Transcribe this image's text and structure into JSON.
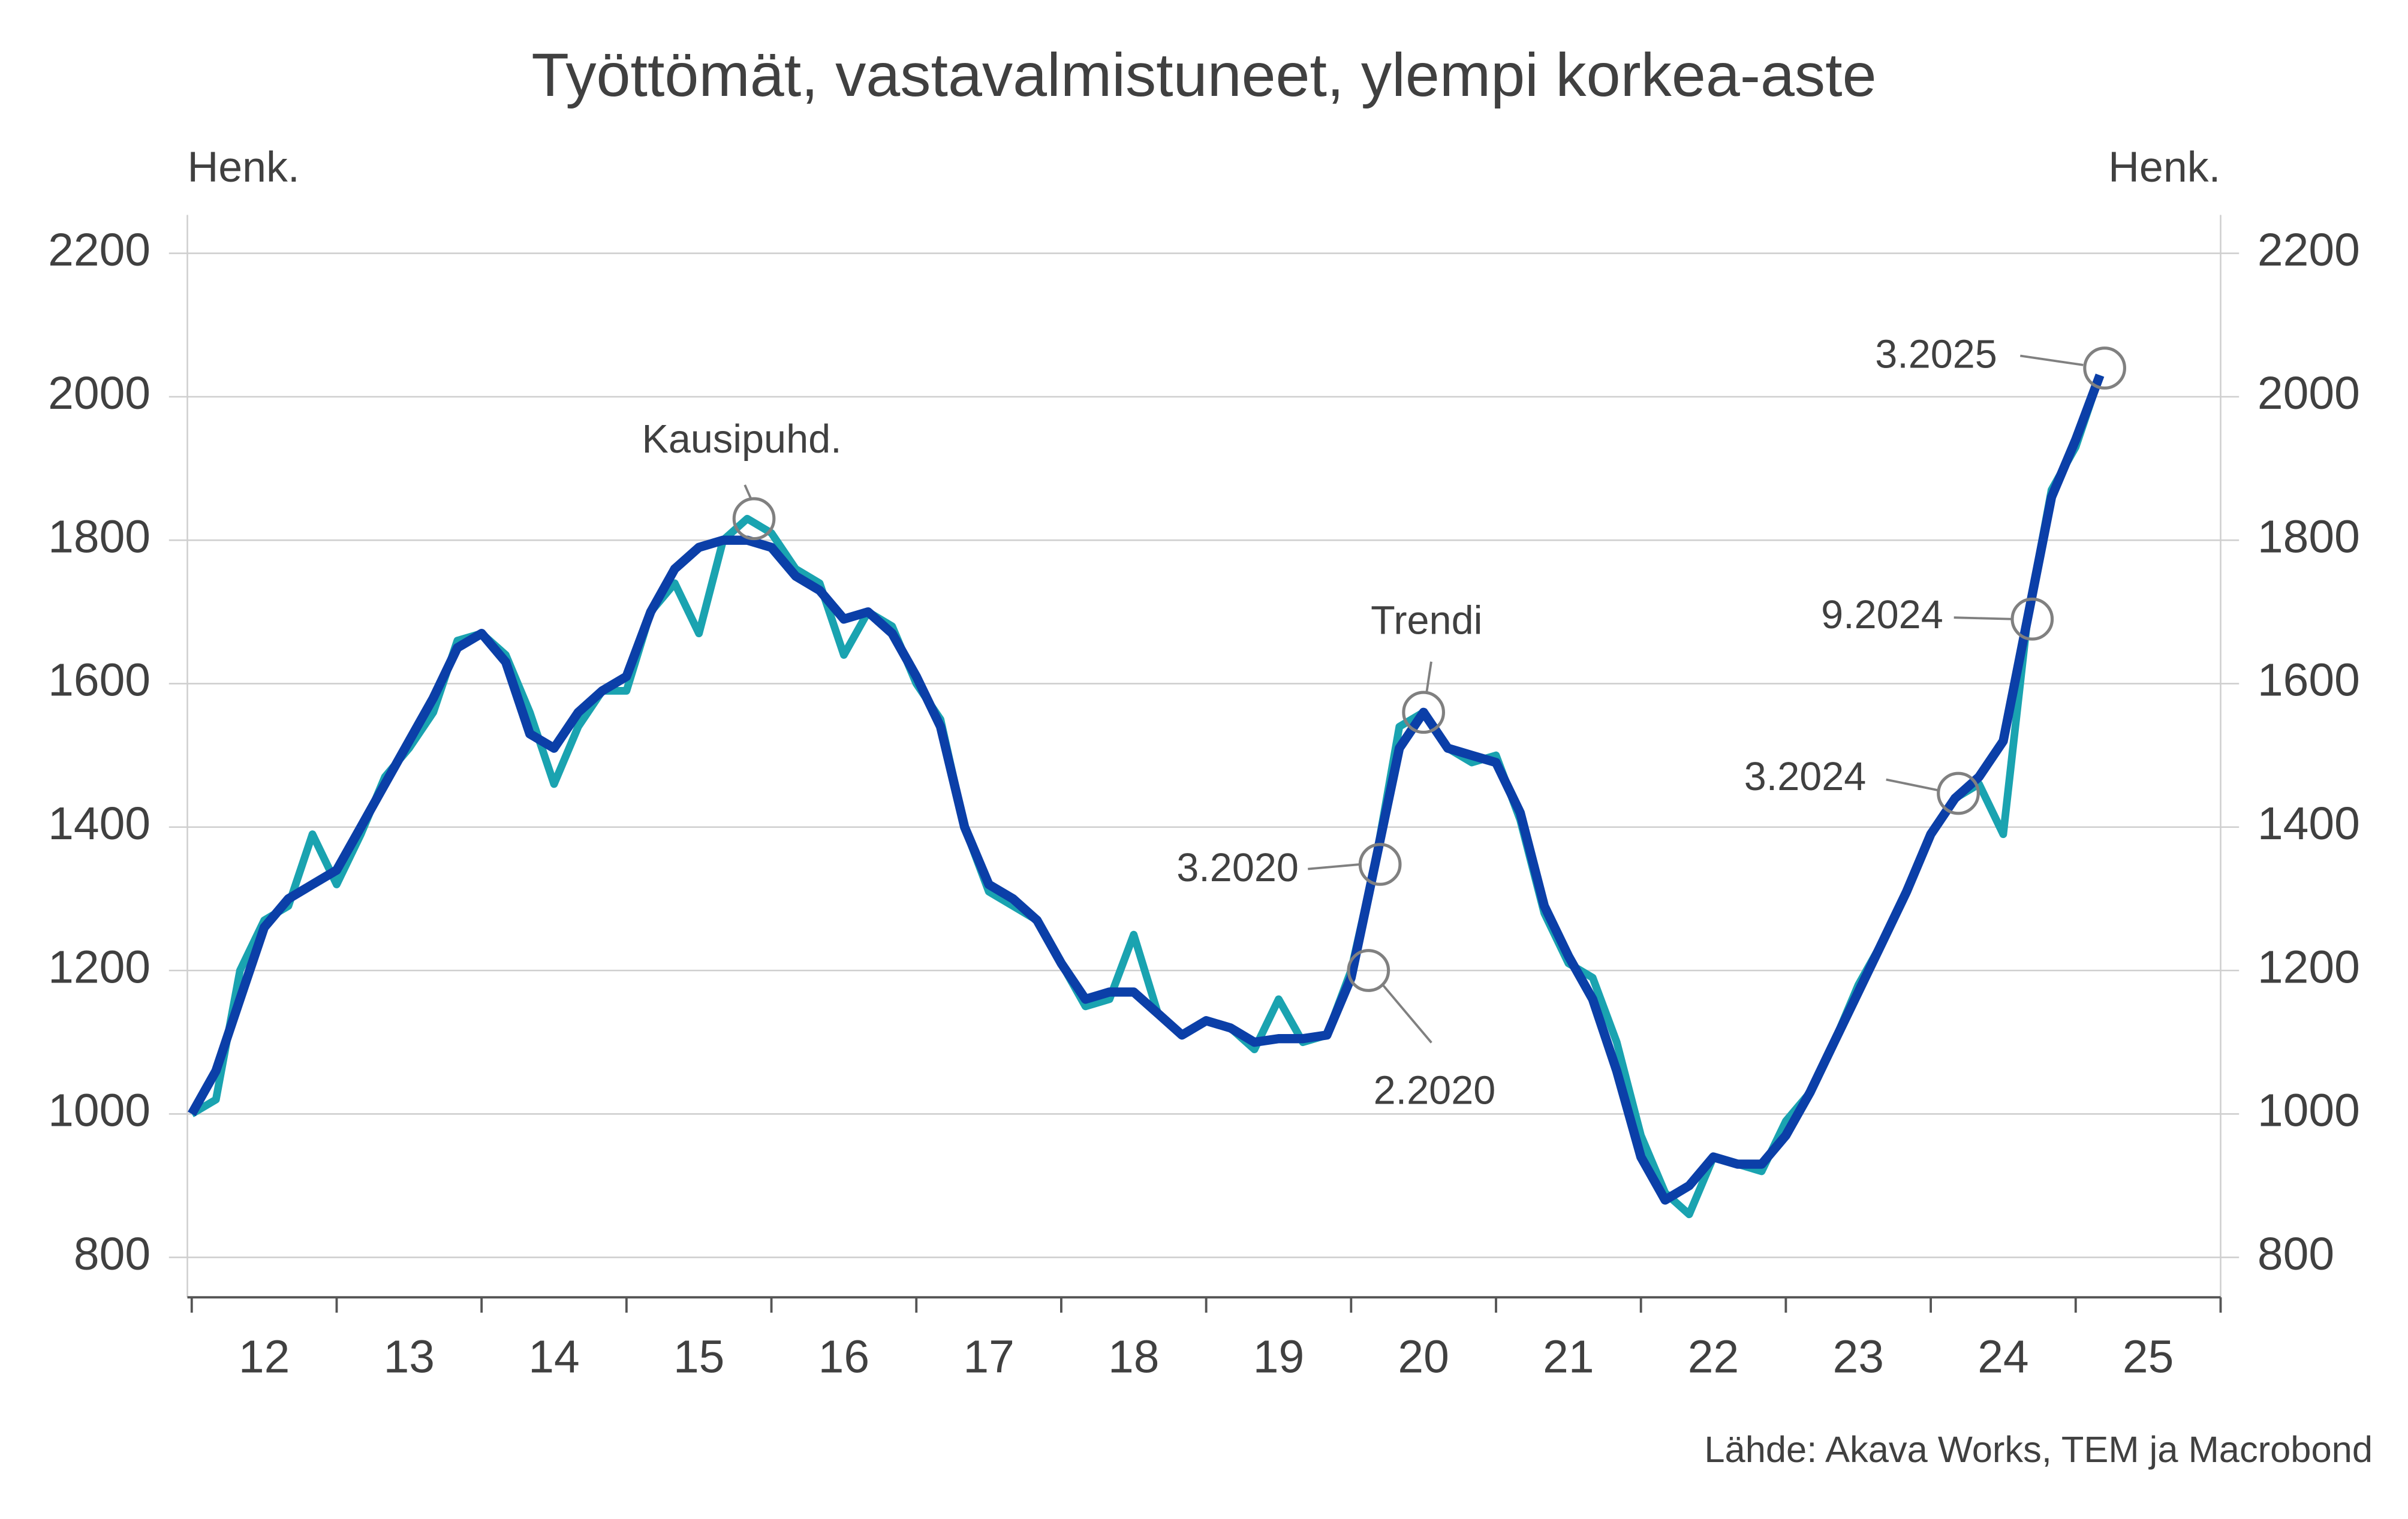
{
  "chart_data": {
    "type": "line",
    "title": "Työttömät, vastavalmistuneet, ylempi korkea-aste",
    "y_label_left": "Henk.",
    "y_label_right": "Henk.",
    "source": "Lähde: Akava Works, TEM ja Macrobond",
    "x": [
      2012.0,
      2012.167,
      2012.333,
      2012.5,
      2012.667,
      2012.833,
      2013.0,
      2013.167,
      2013.333,
      2013.5,
      2013.667,
      2013.833,
      2014.0,
      2014.167,
      2014.333,
      2014.5,
      2014.667,
      2014.833,
      2015.0,
      2015.167,
      2015.333,
      2015.5,
      2015.667,
      2015.833,
      2016.0,
      2016.167,
      2016.333,
      2016.5,
      2016.667,
      2016.833,
      2017.0,
      2017.167,
      2017.333,
      2017.5,
      2017.667,
      2017.833,
      2018.0,
      2018.167,
      2018.333,
      2018.5,
      2018.667,
      2018.833,
      2019.0,
      2019.167,
      2019.333,
      2019.5,
      2019.667,
      2019.833,
      2020.0,
      2020.167,
      2020.333,
      2020.5,
      2020.667,
      2020.833,
      2021.0,
      2021.167,
      2021.333,
      2021.5,
      2021.667,
      2021.833,
      2022.0,
      2022.167,
      2022.333,
      2022.5,
      2022.667,
      2022.833,
      2023.0,
      2023.167,
      2023.333,
      2023.5,
      2023.667,
      2023.833,
      2024.0,
      2024.167,
      2024.333,
      2024.5,
      2024.667,
      2024.833,
      2025.0,
      2025.167
    ],
    "series": [
      {
        "name": "Kausipuhd.",
        "color": "#1aa3b0",
        "width": 5,
        "values": [
          1000,
          1020,
          1200,
          1270,
          1290,
          1390,
          1320,
          1390,
          1470,
          1510,
          1560,
          1660,
          1670,
          1640,
          1560,
          1460,
          1540,
          1590,
          1590,
          1700,
          1740,
          1670,
          1800,
          1830,
          1810,
          1760,
          1740,
          1640,
          1700,
          1680,
          1600,
          1550,
          1400,
          1310,
          1290,
          1270,
          1210,
          1150,
          1160,
          1250,
          1140,
          1110,
          1130,
          1120,
          1090,
          1160,
          1100,
          1110,
          1200,
          1350,
          1540,
          1560,
          1510,
          1490,
          1500,
          1410,
          1280,
          1210,
          1190,
          1100,
          970,
          890,
          860,
          940,
          930,
          920,
          990,
          1030,
          1100,
          1180,
          1240,
          1310,
          1390,
          1440,
          1460,
          1390,
          1690,
          1870,
          1930,
          2030
        ]
      },
      {
        "name": "Trendi",
        "color": "#0b3fa8",
        "width": 6,
        "values": [
          1000,
          1060,
          1160,
          1260,
          1300,
          1320,
          1340,
          1400,
          1460,
          1520,
          1580,
          1650,
          1670,
          1630,
          1530,
          1510,
          1560,
          1590,
          1610,
          1700,
          1760,
          1790,
          1800,
          1800,
          1790,
          1750,
          1730,
          1690,
          1700,
          1670,
          1610,
          1540,
          1400,
          1320,
          1300,
          1270,
          1210,
          1160,
          1170,
          1170,
          1140,
          1110,
          1130,
          1120,
          1100,
          1105,
          1105,
          1110,
          1190,
          1350,
          1510,
          1560,
          1510,
          1500,
          1490,
          1420,
          1290,
          1220,
          1160,
          1060,
          940,
          880,
          900,
          940,
          930,
          930,
          970,
          1030,
          1100,
          1170,
          1240,
          1310,
          1390,
          1440,
          1470,
          1520,
          1690,
          1860,
          1940,
          2030
        ]
      }
    ],
    "xlim": [
      2011.97,
      2026.0
    ],
    "xticks": [
      2012,
      2013,
      2014,
      2015,
      2016,
      2017,
      2018,
      2019,
      2020,
      2021,
      2022,
      2023,
      2024,
      2025,
      2026
    ],
    "xtick_labels": [
      "12",
      "13",
      "14",
      "15",
      "16",
      "17",
      "18",
      "19",
      "20",
      "21",
      "22",
      "23",
      "24",
      "25"
    ],
    "ylim": [
      800,
      2200
    ],
    "yticks": [
      800,
      1000,
      1200,
      1400,
      1600,
      1800,
      2000,
      2200
    ],
    "grid": true,
    "annotations": [
      {
        "text": "Kausipuhd.",
        "x": 2015.88,
        "y": 1830
      },
      {
        "text": "Trendi",
        "x": 2020.5,
        "y": 1560
      },
      {
        "text": "3.2020",
        "x": 2020.2,
        "y": 1348
      },
      {
        "text": "2.2020",
        "x": 2020.12,
        "y": 1200
      },
      {
        "text": "3.2024",
        "x": 2024.19,
        "y": 1447
      },
      {
        "text": "9.2024",
        "x": 2024.7,
        "y": 1690
      },
      {
        "text": "3.2025",
        "x": 2025.2,
        "y": 2040
      }
    ]
  }
}
